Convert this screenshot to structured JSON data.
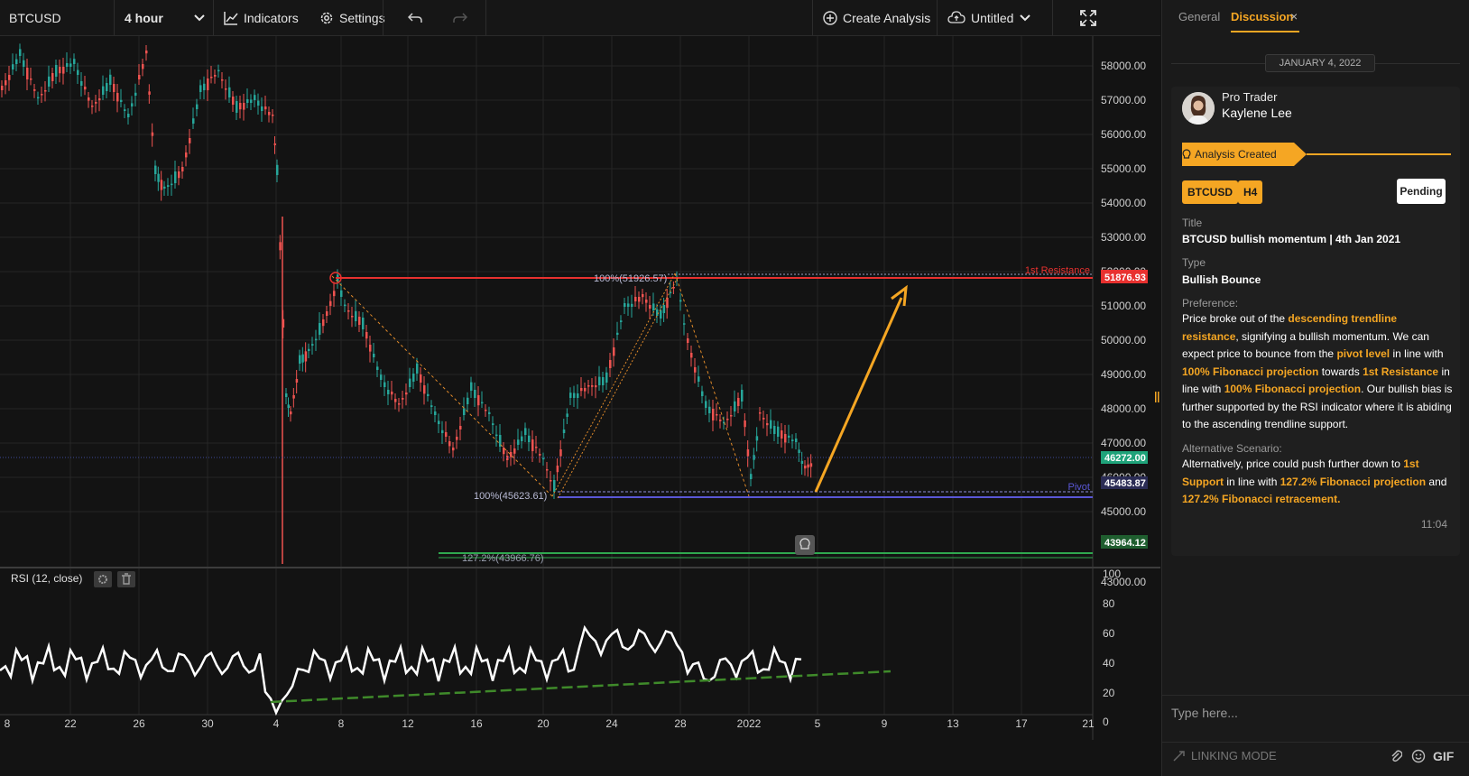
{
  "toolbar": {
    "symbol": "BTCUSD",
    "interval": "4 hour",
    "indicators": "Indicators",
    "settings": "Settings",
    "create_analysis": "Create Analysis",
    "layout_name": "Untitled"
  },
  "chart": {
    "price_axis": [
      "58000.00",
      "57000.00",
      "56000.00",
      "55000.00",
      "54000.00",
      "53000.00",
      "52000.00",
      "51000.00",
      "50000.00",
      "49000.00",
      "48000.00",
      "47000.00",
      "46000.00",
      "45000.00",
      "43000.00"
    ],
    "time_axis": [
      "8",
      "22",
      "26",
      "30",
      "4",
      "8",
      "12",
      "16",
      "20",
      "24",
      "28",
      "2022",
      "5",
      "9",
      "13",
      "17",
      "21"
    ],
    "labels": {
      "resistance": "1st Resistance",
      "pivot": "Pivot",
      "fib_top": "100%(51926.57)",
      "fib_bottom": "100%(45623.61)",
      "fib_ext": "127.2%(43966.76)"
    },
    "price_tags": {
      "resistance": "51876.93",
      "last": "46272.00",
      "last_sub": "46000.00",
      "pivot": "45483.87",
      "support": "43964.12"
    },
    "colors": {
      "resistance": "#e8312f",
      "pivot": "#5a57d6",
      "support": "#2fa84f",
      "arrow": "#f5a623",
      "last_price": "#1fa37a",
      "candle_up": "#26a69a",
      "candle_down": "#ef5350"
    }
  },
  "rsi": {
    "title": "RSI (12, close)",
    "axis": [
      "100",
      "80",
      "60",
      "40",
      "20",
      "0"
    ]
  },
  "panel": {
    "tabs": [
      "General",
      "Discussion"
    ],
    "date": "JANUARY 4, 2022",
    "user_role": "Pro Trader",
    "user_name": "Kaylene Lee",
    "event": "Analysis Created",
    "symbol_chip": "BTCUSD",
    "timeframe_chip": "H4",
    "status": "Pending",
    "title_label": "Title",
    "title_value": "BTCUSD bullish momentum | 4th Jan 2021",
    "type_label": "Type",
    "type_value": "Bullish Bounce",
    "preference_label": "Preference:",
    "alt_label": "Alternative Scenario:",
    "time": "11:04",
    "input_placeholder": "Type here...",
    "linking_mode": "LINKING MODE",
    "gif": "GIF"
  }
}
